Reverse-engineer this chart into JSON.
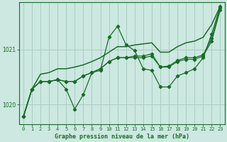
{
  "title": "Graphe pression niveau de la mer (hPa)",
  "background_color": "#cce8e0",
  "grid_color": "#aaccc4",
  "line_color": "#1a6b2a",
  "xlim": [
    -0.5,
    23.5
  ],
  "ylim": [
    1019.65,
    1021.85
  ],
  "yticks": [
    1020,
    1021
  ],
  "xticks": [
    0,
    1,
    2,
    3,
    4,
    5,
    6,
    7,
    8,
    9,
    10,
    11,
    12,
    13,
    14,
    15,
    16,
    17,
    18,
    19,
    20,
    21,
    22,
    23
  ],
  "series": [
    [
      1019.78,
      1020.28,
      1020.42,
      1020.42,
      1020.45,
      1020.42,
      1020.42,
      1020.52,
      1020.58,
      1020.65,
      1020.78,
      1020.85,
      1020.85,
      1020.88,
      1020.88,
      1020.92,
      1020.68,
      1020.7,
      1020.8,
      1020.85,
      1020.85,
      1020.9,
      1021.2,
      1021.75
    ],
    [
      1019.78,
      1020.28,
      1020.42,
      1020.42,
      1020.45,
      1020.28,
      1019.92,
      1020.18,
      1020.58,
      1020.62,
      1021.22,
      1021.42,
      1021.08,
      1020.98,
      1020.65,
      1020.62,
      1020.32,
      1020.32,
      1020.52,
      1020.58,
      1020.65,
      1020.85,
      1021.28,
      1021.78
    ],
    [
      1019.78,
      1020.28,
      1020.42,
      1020.42,
      1020.45,
      1020.42,
      1020.42,
      1020.52,
      1020.58,
      1020.65,
      1020.78,
      1020.85,
      1020.85,
      1020.85,
      1020.85,
      1020.88,
      1020.68,
      1020.68,
      1020.78,
      1020.82,
      1020.82,
      1020.88,
      1021.15,
      1021.72
    ],
    [
      1019.78,
      1020.28,
      1020.55,
      1020.58,
      1020.65,
      1020.65,
      1020.68,
      1020.72,
      1020.78,
      1020.85,
      1020.95,
      1021.05,
      1021.05,
      1021.08,
      1021.1,
      1021.12,
      1020.95,
      1020.95,
      1021.05,
      1021.12,
      1021.15,
      1021.22,
      1021.45,
      1021.78
    ]
  ]
}
